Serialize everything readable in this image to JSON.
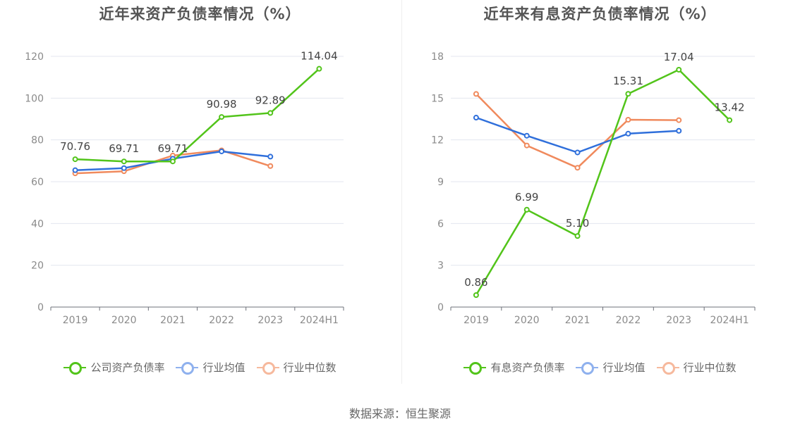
{
  "chart_data": [
    {
      "type": "line",
      "title": "近年来资产负债率情况（%）",
      "categories": [
        "2019",
        "2020",
        "2021",
        "2022",
        "2023",
        "2024H1"
      ],
      "ylim": [
        0,
        120
      ],
      "yticks": [
        0,
        20,
        40,
        60,
        80,
        100,
        120
      ],
      "grid": true,
      "legend_position": "bottom",
      "series": [
        {
          "name": "公司资产负债率",
          "color": "#52c41a",
          "values": [
            70.76,
            69.71,
            69.71,
            90.98,
            92.89,
            114.04
          ],
          "labels": [
            "70.76",
            "69.71",
            "69.71",
            "90.98",
            "92.89",
            "114.04"
          ]
        },
        {
          "name": "行业均值",
          "color": "#2f6fdb",
          "values": [
            65.5,
            66.5,
            71.0,
            74.5,
            72.0,
            null
          ]
        },
        {
          "name": "行业中位数",
          "color": "#f08a5d",
          "values": [
            64.0,
            65.0,
            72.5,
            75.0,
            67.5,
            null
          ]
        }
      ]
    },
    {
      "type": "line",
      "title": "近年来有息资产负债率情况（%）",
      "categories": [
        "2019",
        "2020",
        "2021",
        "2022",
        "2023",
        "2024H1"
      ],
      "ylim": [
        0,
        18
      ],
      "yticks": [
        0,
        3,
        6,
        9,
        12,
        15,
        18
      ],
      "grid": true,
      "legend_position": "bottom",
      "series": [
        {
          "name": "有息资产负债率",
          "color": "#52c41a",
          "values": [
            0.86,
            6.99,
            5.1,
            15.31,
            17.04,
            13.42
          ],
          "labels": [
            "0.86",
            "6.99",
            "5.10",
            "15.31",
            "17.04",
            "13.42"
          ]
        },
        {
          "name": "行业均值",
          "color": "#2f6fdb",
          "values": [
            13.6,
            12.3,
            11.1,
            12.45,
            12.65,
            null
          ]
        },
        {
          "name": "行业中位数",
          "color": "#f08a5d",
          "values": [
            15.3,
            11.6,
            10.0,
            13.45,
            13.42,
            null
          ]
        }
      ]
    }
  ],
  "source": "数据来源：恒生聚源"
}
